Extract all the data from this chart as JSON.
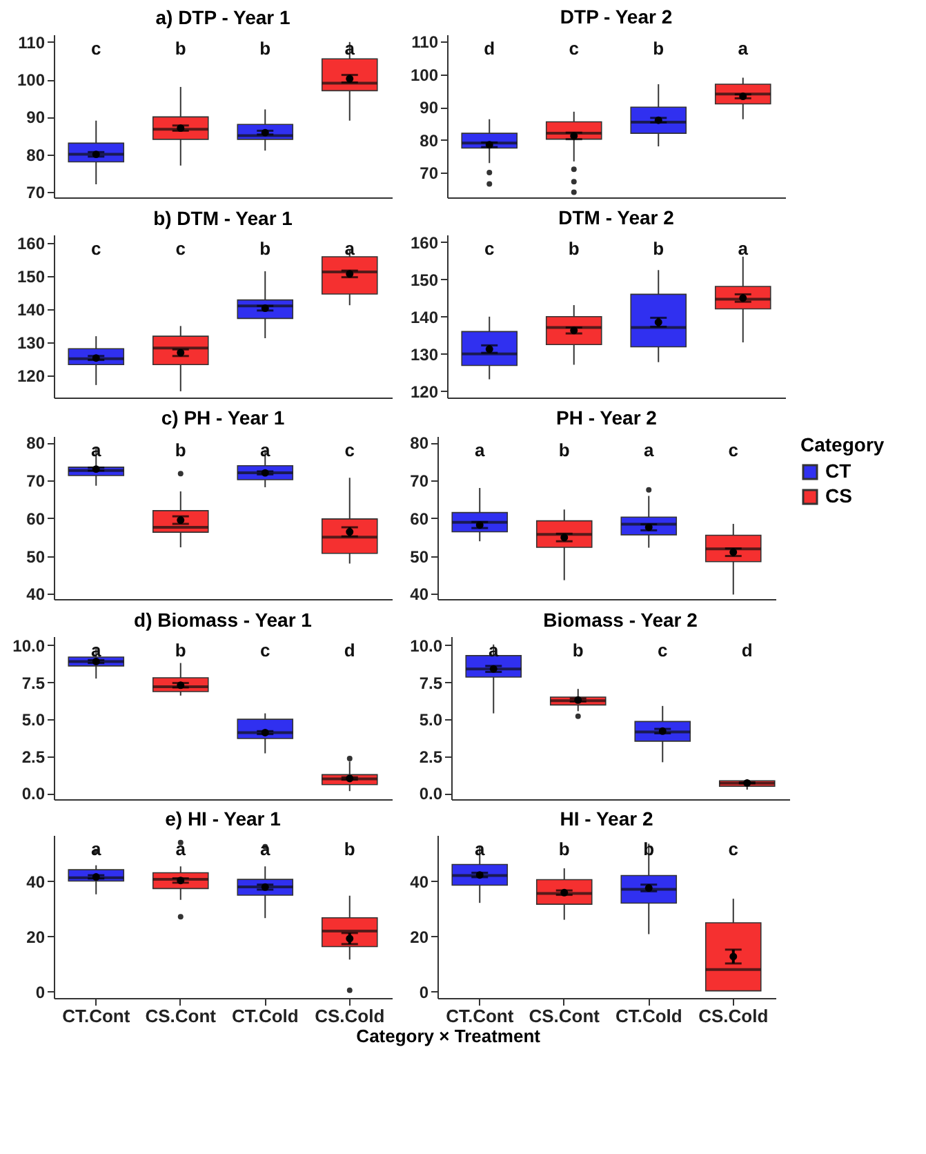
{
  "chart_data": [
    {
      "type": "box",
      "title": "a) DTP - Year 1",
      "categories": [
        null,
        null,
        null,
        null
      ],
      "ylim": [
        68.5,
        112
      ],
      "yticks": [
        70,
        80,
        90,
        100,
        110
      ],
      "tick_labels": "y",
      "series": [
        {
          "color": "#3030f0",
          "boxes": [
            {
              "low": 72,
              "q1": 78,
              "median": 80,
              "q3": 83,
              "high": 89
            },
            null,
            {
              "low": 81,
              "q1": 84,
              "median": 85,
              "q3": 88,
              "high": 92
            },
            null
          ]
        },
        {
          "color": "#f53030",
          "boxes": [
            null,
            {
              "low": 77,
              "q1": 84,
              "median": 86.7,
              "q3": 90,
              "high": 98
            },
            null,
            {
              "low": 89,
              "q1": 97,
              "median": 99,
              "q3": 105.5,
              "high": 110
            }
          ]
        },
        {
          "type": "scatter",
          "color": "#000000",
          "marker": "circle",
          "values": [
            80,
            87,
            85.8,
            100.2
          ],
          "errors": [
            0.6,
            0.7,
            0.5,
            1
          ]
        }
      ],
      "annotations": [
        "c",
        "b",
        "b",
        "a"
      ]
    },
    {
      "type": "box",
      "title": "DTP - Year 2",
      "categories": [
        null,
        null,
        null,
        null
      ],
      "ylim": [
        62.4,
        112.2
      ],
      "yticks": [
        70,
        80,
        90,
        100,
        110
      ],
      "tick_labels": "y",
      "series": [
        {
          "color": "#3030f0",
          "boxes": [
            {
              "low": 72.9,
              "q1": 77.5,
              "median": 79,
              "q3": 82,
              "high": 86.3,
              "outliers": [
                70,
                66.5
              ]
            },
            null,
            {
              "low": 78,
              "q1": 82,
              "median": 85.4,
              "q3": 90,
              "high": 97
            },
            null
          ]
        },
        {
          "color": "#f53030",
          "boxes": [
            null,
            {
              "low": 73.4,
              "q1": 80.2,
              "median": 82,
              "q3": 85.5,
              "high": 88.6,
              "outliers": [
                71,
                67.2,
                64
              ]
            },
            null,
            {
              "low": 86.3,
              "q1": 91,
              "median": 94,
              "q3": 97,
              "high": 99
            }
          ]
        },
        {
          "type": "scatter",
          "color": "#000000",
          "marker": "circle",
          "values": [
            78.5,
            81.2,
            86,
            93.3
          ],
          "errors": [
            0.7,
            1,
            0.7,
            0.6
          ]
        }
      ],
      "annotations": [
        "d",
        "c",
        "b",
        "a"
      ]
    },
    {
      "type": "box",
      "title": "b) DTM - Year 1",
      "categories": [
        null,
        null,
        null,
        null
      ],
      "ylim": [
        113.2,
        162.6
      ],
      "yticks": [
        120,
        130,
        140,
        150,
        160
      ],
      "tick_labels": "y",
      "series": [
        {
          "color": "#3030f0",
          "boxes": [
            {
              "low": 117,
              "q1": 123.2,
              "median": 125,
              "q3": 128,
              "high": 131.8
            },
            null,
            {
              "low": 131.2,
              "q1": 137.2,
              "median": 141,
              "q3": 142.8,
              "high": 151.5
            },
            null
          ]
        },
        {
          "color": "#f53030",
          "boxes": [
            null,
            {
              "low": 115.1,
              "q1": 123.2,
              "median": 128.2,
              "q3": 131.8,
              "high": 134.9
            },
            null,
            {
              "low": 141.2,
              "q1": 144.6,
              "median": 151.3,
              "q3": 155.9,
              "high": 158
            }
          ]
        },
        {
          "type": "scatter",
          "color": "#000000",
          "marker": "circle",
          "values": [
            125.2,
            126.8,
            140.3,
            150.7
          ],
          "errors": [
            0.6,
            1,
            0.7,
            1
          ]
        }
      ],
      "annotations": [
        "c",
        "c",
        "b",
        "a"
      ]
    },
    {
      "type": "box",
      "title": "DTM - Year 2",
      "categories": [
        null,
        null,
        null,
        null
      ],
      "ylim": [
        118.3,
        162
      ],
      "yticks": [
        120,
        130,
        140,
        150,
        160
      ],
      "tick_labels": "y",
      "series": [
        {
          "color": "#3030f0",
          "boxes": [
            {
              "low": 123.2,
              "q1": 126.9,
              "median": 130,
              "q3": 136,
              "high": 140
            },
            null,
            {
              "low": 127.8,
              "q1": 131.9,
              "median": 137.1,
              "q3": 146,
              "high": 152.5
            },
            null
          ]
        },
        {
          "color": "#f53030",
          "boxes": [
            null,
            {
              "low": 127.1,
              "q1": 132.5,
              "median": 137.1,
              "q3": 140,
              "high": 143.1
            },
            null,
            {
              "low": 133.1,
              "q1": 142.1,
              "median": 144.7,
              "q3": 148.1,
              "high": 156.1
            }
          ]
        },
        {
          "type": "scatter",
          "color": "#000000",
          "marker": "circle",
          "values": [
            131.3,
            136.3,
            138.5,
            145
          ],
          "errors": [
            1,
            0.8,
            1.2,
            1
          ]
        }
      ],
      "annotations": [
        "c",
        "b",
        "b",
        "a"
      ]
    },
    {
      "type": "box",
      "title": "c) PH - Year 1",
      "categories": [
        null,
        null,
        null,
        null
      ],
      "ylim": [
        38.6,
        81.7
      ],
      "yticks": [
        40,
        50,
        60,
        70,
        80
      ],
      "tick_labels": "y",
      "series": [
        {
          "color": "#3030f0",
          "boxes": [
            {
              "low": 68.6,
              "q1": 71.3,
              "median": 72.6,
              "q3": 73.5,
              "high": 78.9
            },
            null,
            {
              "low": 68.2,
              "q1": 70.2,
              "median": 72,
              "q3": 73.9,
              "high": 78.1
            },
            null
          ]
        },
        {
          "color": "#f53030",
          "boxes": [
            null,
            {
              "low": 52.3,
              "q1": 56.3,
              "median": 57.6,
              "q3": 62,
              "high": 67.1,
              "outliers": [
                71.8
              ]
            },
            null,
            {
              "low": 48,
              "q1": 50.7,
              "median": 55,
              "q3": 59.8,
              "high": 70.7
            }
          ]
        },
        {
          "type": "scatter",
          "color": "#000000",
          "marker": "circle",
          "values": [
            73,
            59.5,
            72,
            56.4
          ],
          "errors": [
            0.4,
            1,
            0.4,
            1.2
          ]
        }
      ],
      "annotations": [
        "a",
        "b",
        "a",
        "c"
      ]
    },
    {
      "type": "box",
      "title": "PH - Year 2",
      "categories": [
        null,
        null,
        null,
        null
      ],
      "ylim": [
        38.6,
        81.7
      ],
      "yticks": [
        40,
        50,
        60,
        70,
        80
      ],
      "tick_labels": "y",
      "legend": "right",
      "legend_title": "Category",
      "series": [
        {
          "name": "CT",
          "color": "#3030f0",
          "boxes": [
            {
              "low": 53.9,
              "q1": 56.4,
              "median": 58.9,
              "q3": 61.5,
              "high": 68
            },
            null,
            {
              "low": 52.2,
              "q1": 55.6,
              "median": 58.4,
              "q3": 60.3,
              "high": 65.9,
              "outliers": [
                67.5
              ]
            },
            null
          ]
        },
        {
          "name": "CS",
          "color": "#f53030",
          "boxes": [
            null,
            {
              "low": 43.6,
              "q1": 52.3,
              "median": 55.7,
              "q3": 59.3,
              "high": 62.3
            },
            null,
            {
              "low": 39.8,
              "q1": 48.5,
              "median": 51.9,
              "q3": 55.5,
              "high": 58.5
            }
          ]
        },
        {
          "type": "scatter",
          "color": "#000000",
          "marker": "circle",
          "values": [
            58.2,
            54.9,
            57.6,
            51
          ],
          "errors": [
            0.8,
            1,
            0.8,
            1
          ]
        }
      ],
      "annotations": [
        "a",
        "b",
        "a",
        "c"
      ]
    },
    {
      "type": "box",
      "title": "d) Biomass - Year 1",
      "categories": [
        null,
        null,
        null,
        null
      ],
      "ylim": [
        -0.4,
        10.6
      ],
      "yticks": [
        {
          "value": 0,
          "label": "0.0"
        },
        2.5,
        {
          "value": 5,
          "label": "5.0"
        },
        7.5,
        {
          "value": 10,
          "label": "10.0"
        }
      ],
      "tick_labels": "y",
      "series": [
        {
          "color": "#3030f0",
          "boxes": [
            {
              "low": 7.75,
              "q1": 8.6,
              "median": 8.9,
              "q3": 9.2,
              "high": 9.9
            },
            null,
            {
              "low": 2.7,
              "q1": 3.7,
              "median": 4.1,
              "q3": 5,
              "high": 5.4
            },
            null
          ]
        },
        {
          "color": "#f53030",
          "boxes": [
            null,
            {
              "low": 6.6,
              "q1": 6.87,
              "median": 7.2,
              "q3": 7.8,
              "high": 8.8
            },
            null,
            {
              "low": 0.15,
              "q1": 0.59,
              "median": 0.97,
              "q3": 1.26,
              "high": 2.15,
              "outliers": [
                2.35
              ]
            }
          ]
        },
        {
          "type": "scatter",
          "color": "#000000",
          "marker": "circle",
          "values": [
            8.9,
            7.3,
            4.1,
            1
          ],
          "errors": [
            0.1,
            0.15,
            0.1,
            0.08
          ]
        }
      ],
      "annotations": [
        "a",
        "b",
        "c",
        "d"
      ]
    },
    {
      "type": "box",
      "title": "Biomass - Year 2",
      "categories": [
        null,
        null,
        null,
        null
      ],
      "ylim": [
        -0.4,
        10.6
      ],
      "yticks": [
        {
          "value": 0,
          "label": "0.0"
        },
        2.5,
        {
          "value": 5,
          "label": "5.0"
        },
        7.5,
        {
          "value": 10,
          "label": "10.0"
        }
      ],
      "tick_labels": "y",
      "series": [
        {
          "color": "#3030f0",
          "boxes": [
            {
              "low": 5.4,
              "q1": 7.85,
              "median": 8.4,
              "q3": 9.3,
              "high": 10.05
            },
            null,
            {
              "low": 2.1,
              "q1": 3.52,
              "median": 4.14,
              "q3": 4.85,
              "high": 5.9
            },
            null
          ]
        },
        {
          "color": "#f53030",
          "boxes": [
            null,
            {
              "low": 5.55,
              "q1": 5.97,
              "median": 6.25,
              "q3": 6.5,
              "high": 7.05,
              "outliers": [
                5.2
              ]
            },
            null,
            {
              "low": 0.25,
              "q1": 0.48,
              "median": 0.68,
              "q3": 0.85,
              "high": 0.93
            }
          ]
        },
        {
          "type": "scatter",
          "color": "#000000",
          "marker": "circle",
          "values": [
            8.4,
            6.3,
            4.2,
            0.7
          ],
          "errors": [
            0.2,
            0.1,
            0.15,
            0.03
          ]
        }
      ],
      "annotations": [
        "a",
        "b",
        "c",
        "d"
      ]
    },
    {
      "type": "box",
      "title": "e) HI - Year 1",
      "categories": [
        "CT.Cont",
        "CS.Cont",
        "CT.Cold",
        "CS.Cold"
      ],
      "xlabel": "Category × Treatment",
      "ylim": [
        -2.3,
        56.6
      ],
      "yticks": [
        0,
        20,
        40
      ],
      "series": [
        {
          "color": "#3030f0",
          "boxes": [
            {
              "low": 35.2,
              "q1": 40,
              "median": 41.2,
              "q3": 44.1,
              "high": 45.7,
              "outliers": [
                50.7
              ]
            },
            null,
            {
              "low": 26.6,
              "q1": 34.9,
              "median": 37.9,
              "q3": 40.6,
              "high": 45.3,
              "outliers": [
                52.4
              ]
            },
            null
          ]
        },
        {
          "color": "#f53030",
          "boxes": [
            null,
            {
              "low": 33.2,
              "q1": 37.3,
              "median": 40.6,
              "q3": 43,
              "high": 45.3,
              "outliers": [
                53.9,
                27.1
              ]
            },
            null,
            {
              "low": 11.6,
              "q1": 16.3,
              "median": 21.9,
              "q3": 26.7,
              "high": 34.7,
              "outliers": [
                0.5
              ]
            }
          ]
        },
        {
          "type": "scatter",
          "color": "#000000",
          "marker": "circle",
          "values": [
            41.5,
            40.2,
            37.8,
            19.2
          ],
          "errors": [
            0.6,
            0.8,
            0.9,
            2
          ]
        }
      ],
      "annotations": [
        "a",
        "a",
        "a",
        "b"
      ]
    },
    {
      "type": "box",
      "title": "HI - Year 2",
      "categories": [
        "CT.Cont",
        "CS.Cont",
        "CT.Cold",
        "CS.Cold"
      ],
      "ylim": [
        -2.3,
        56.6
      ],
      "yticks": [
        0,
        20,
        40
      ],
      "series": [
        {
          "color": "#3030f0",
          "boxes": [
            {
              "low": 32.1,
              "q1": 38.5,
              "median": 42,
              "q3": 46,
              "high": 52.8
            },
            null,
            {
              "low": 20.8,
              "q1": 32,
              "median": 37,
              "q3": 42,
              "high": 53.5
            },
            null
          ]
        },
        {
          "color": "#f53030",
          "boxes": [
            null,
            {
              "low": 26,
              "q1": 31.6,
              "median": 35.5,
              "q3": 40.5,
              "high": 44.6
            },
            null,
            {
              "low": 0.3,
              "q1": 0.3,
              "median": 8,
              "q3": 24.9,
              "high": 33.6
            }
          ]
        },
        {
          "type": "scatter",
          "color": "#000000",
          "marker": "circle",
          "values": [
            42.2,
            35.8,
            37.5,
            12.7
          ],
          "errors": [
            0.8,
            0.8,
            1.2,
            2.5
          ]
        }
      ],
      "annotations": [
        "a",
        "b",
        "b",
        "c"
      ]
    }
  ]
}
